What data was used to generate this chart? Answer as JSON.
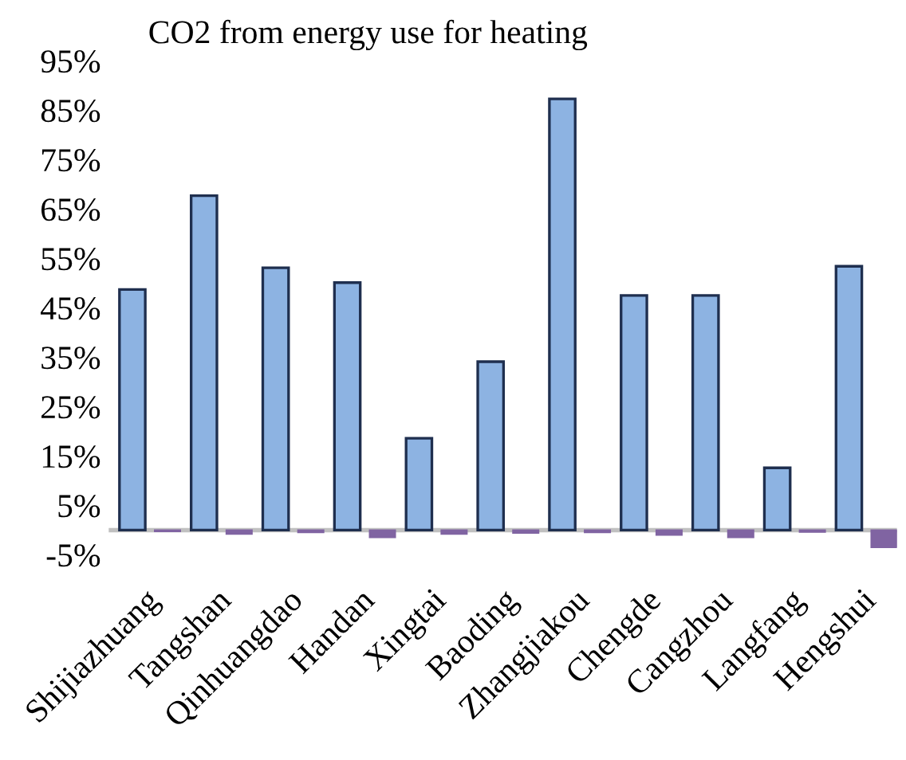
{
  "chart_data": {
    "type": "bar",
    "title": "CO2 from energy use for heating",
    "categories": [
      "Shijiazhuang",
      "Tangshan",
      "Qinhuangdao",
      "Handan",
      "Xingtai",
      "Baoding",
      "Zhangjiakou",
      "Chengde",
      "Cangzhou",
      "Langfang",
      "Hengshui"
    ],
    "series": [
      {
        "color": "#8db3e2",
        "values": [
          48.7,
          67.7,
          53.1,
          50.1,
          18.6,
          34.1,
          87.3,
          47.5,
          47.5,
          12.6,
          53.4
        ]
      },
      {
        "color": "#8064a2",
        "values": [
          -0.3,
          -0.8,
          -0.5,
          -1.5,
          -0.8,
          -0.6,
          -0.5,
          -1.0,
          -1.5,
          -0.4,
          -3.5
        ]
      }
    ],
    "ylim": [
      -5,
      95
    ],
    "yticks": [
      {
        "value": -5,
        "label": "-5%"
      },
      {
        "value": 5,
        "label": "5%"
      },
      {
        "value": 15,
        "label": "15%"
      },
      {
        "value": 25,
        "label": "25%"
      },
      {
        "value": 35,
        "label": "35%"
      },
      {
        "value": 45,
        "label": "45%"
      },
      {
        "value": 55,
        "label": "55%"
      },
      {
        "value": 65,
        "label": "65%"
      },
      {
        "value": 75,
        "label": "75%"
      },
      {
        "value": 85,
        "label": "85%"
      },
      {
        "value": 95,
        "label": "95%"
      }
    ],
    "grid": false,
    "legend": false
  }
}
